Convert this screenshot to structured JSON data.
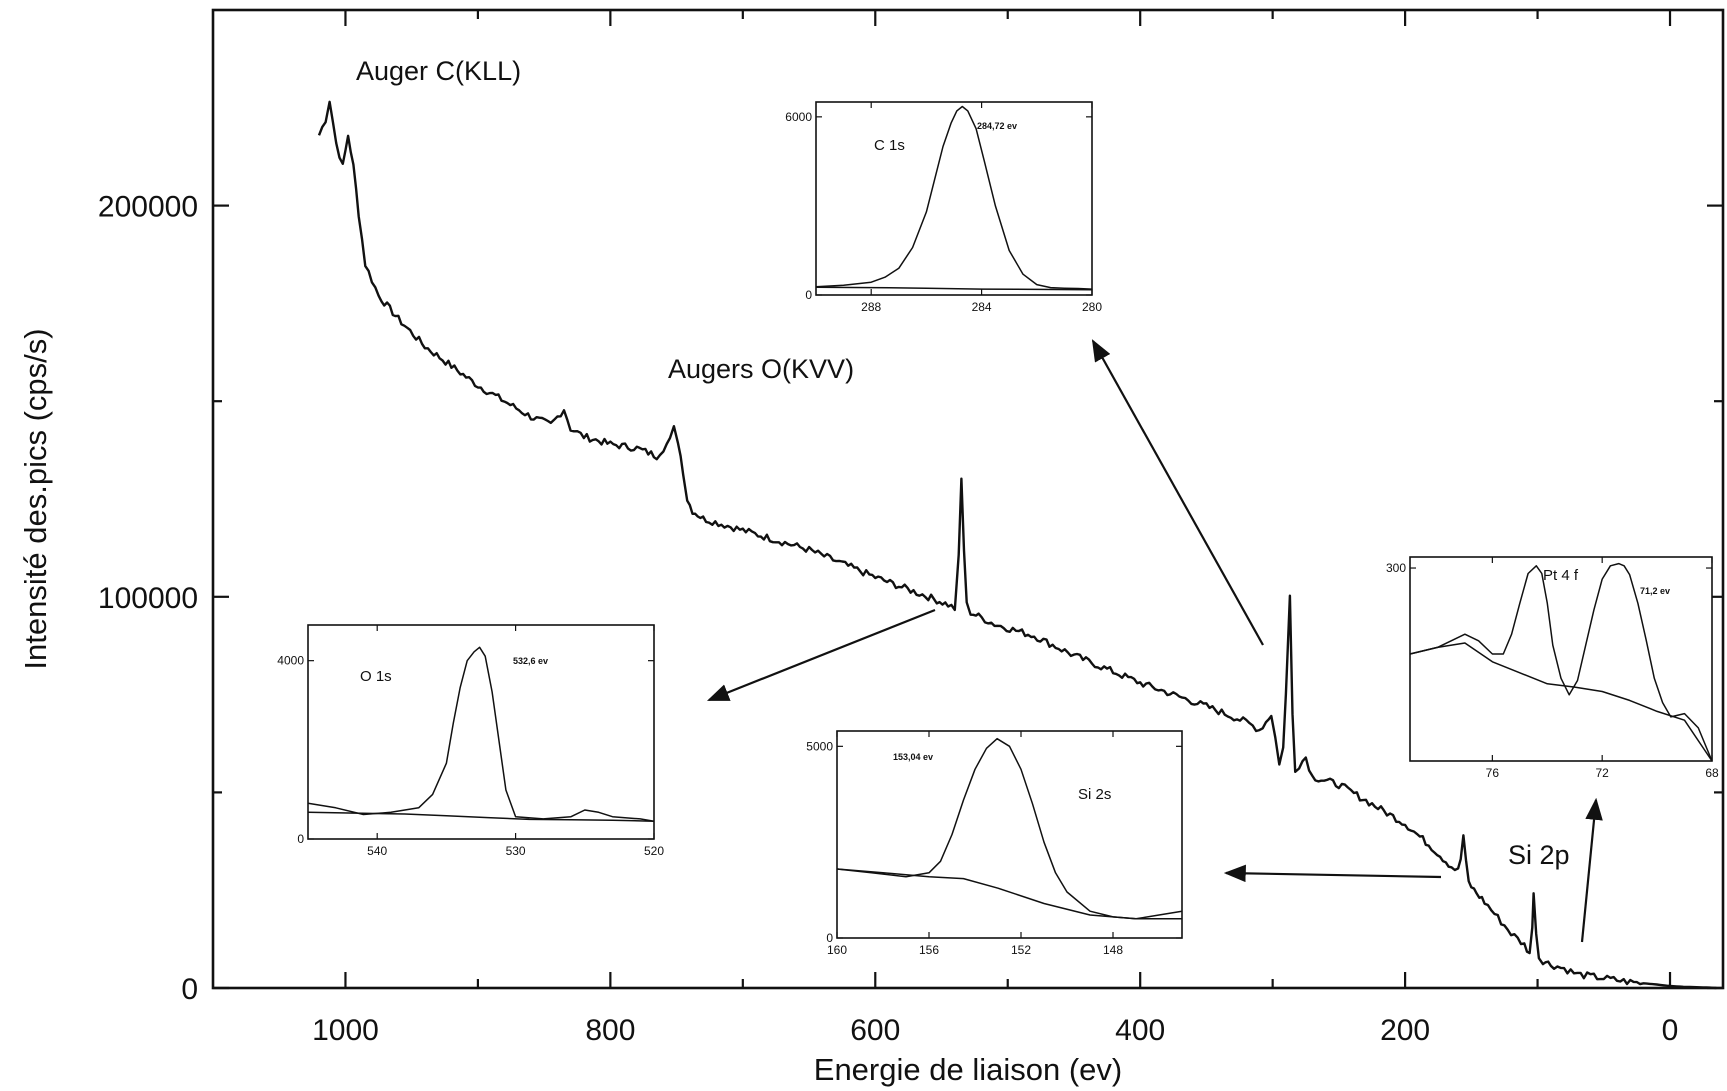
{
  "chart_data": {
    "type": "line",
    "xlabel": "Energie de liaison (ev)",
    "ylabel": "Intensité des.pics (cps/s)",
    "xlim": [
      1100,
      -40
    ],
    "ylim": [
      0,
      250000
    ],
    "x_ticks": [
      1000,
      800,
      600,
      400,
      200,
      0
    ],
    "y_ticks": [
      0,
      100000,
      200000
    ],
    "x_tick_labels": [
      "1000",
      "800",
      "600",
      "400",
      "200",
      "0"
    ],
    "y_tick_labels": [
      "0",
      "100000",
      "200000"
    ],
    "grid": false,
    "series": [
      {
        "x": [
          1020,
          1015,
          1012,
          1007,
          1002,
          998,
          994,
          990,
          985,
          975,
          960,
          940,
          920,
          900,
          880,
          860,
          845,
          835,
          830,
          820,
          800,
          780,
          765,
          760,
          755,
          752,
          749,
          745,
          742,
          738,
          730,
          700,
          650,
          600,
          560,
          545,
          540,
          537,
          535,
          533,
          531,
          528,
          522,
          510,
          480,
          450,
          400,
          350,
          320,
          310,
          305,
          301,
          298,
          295,
          292,
          290,
          287,
          285,
          283,
          280,
          275,
          270,
          250,
          200,
          180,
          165,
          160,
          158,
          156,
          154,
          152,
          148,
          140,
          130,
          120,
          110,
          106,
          104,
          103,
          101,
          99,
          96,
          90,
          80,
          70,
          60,
          50,
          40,
          30,
          20,
          10,
          0,
          -10,
          -20,
          -30,
          -35
        ],
        "y": [
          218000,
          222000,
          227000,
          216000,
          210000,
          218000,
          210000,
          198000,
          185000,
          177000,
          171000,
          164000,
          159000,
          154000,
          150000,
          146000,
          144000,
          148000,
          143000,
          141000,
          139000,
          138000,
          136000,
          138000,
          140000,
          143000,
          140000,
          132000,
          125000,
          122000,
          120000,
          117000,
          112000,
          105000,
          100000,
          98000,
          97000,
          110000,
          130000,
          112000,
          98000,
          96000,
          95000,
          93000,
          90000,
          85000,
          78000,
          72000,
          68000,
          66000,
          68000,
          70000,
          64000,
          57000,
          62000,
          75000,
          100000,
          70000,
          56000,
          57000,
          59000,
          54000,
          52000,
          42000,
          36000,
          31000,
          30000,
          33000,
          39000,
          32000,
          27000,
          25000,
          22000,
          18000,
          14000,
          11000,
          9000,
          15000,
          25000,
          14000,
          8000,
          7000,
          6000,
          5000,
          3500,
          3000,
          2500,
          2000,
          1500,
          1200,
          900,
          500,
          300,
          200,
          100,
          0
        ]
      }
    ],
    "annotations": [
      {
        "text": "Auger C(KLL)",
        "x": 1020,
        "y": 235000
      },
      {
        "text": "Augers O(KVV)",
        "x": 765,
        "y": 156000
      },
      {
        "text": "Si 2p",
        "x": 100,
        "y": 33000
      }
    ],
    "insets": [
      {
        "id": "c1s",
        "label": "C 1s",
        "peak_label": "284,72 ev",
        "xlim": [
          290,
          280
        ],
        "x_ticks": [
          288,
          284,
          280
        ],
        "x_tick_labels": [
          "288",
          "284",
          "280"
        ],
        "ylim": [
          0,
          6500
        ],
        "y_ticks": [
          0,
          6000
        ],
        "y_tick_labels": [
          "0",
          "6000"
        ],
        "envelope": {
          "x": [
            290,
            289,
            288,
            287.5,
            287,
            286.5,
            286,
            285.7,
            285.4,
            285.1,
            284.9,
            284.7,
            284.5,
            284.2,
            283.9,
            283.5,
            283,
            282.5,
            282,
            281.5,
            281,
            280.5,
            280
          ],
          "y": [
            280,
            330,
            430,
            600,
            900,
            1600,
            2800,
            3900,
            5000,
            5800,
            6200,
            6350,
            6200,
            5600,
            4500,
            3000,
            1500,
            700,
            350,
            250,
            230,
            220,
            200
          ]
        },
        "background": {
          "x": [
            290,
            288,
            286,
            284,
            282,
            280
          ],
          "y": [
            260,
            250,
            230,
            200,
            190,
            180
          ]
        }
      },
      {
        "id": "o1s",
        "label": "O 1s",
        "peak_label": "532,6 ev",
        "xlim": [
          545,
          520
        ],
        "x_ticks": [
          540,
          530,
          520
        ],
        "x_tick_labels": [
          "540",
          "530",
          "520"
        ],
        "ylim": [
          0,
          4800
        ],
        "y_ticks": [
          0,
          4000
        ],
        "y_tick_labels": [
          "0",
          "4000"
        ],
        "envelope": {
          "x": [
            545,
            543,
            541,
            539,
            537,
            536,
            535,
            534.5,
            534,
            533.5,
            533,
            532.6,
            532.2,
            531.7,
            531.2,
            530.7,
            530,
            528,
            526,
            525,
            524,
            523,
            521,
            520
          ],
          "y": [
            800,
            700,
            550,
            600,
            700,
            1000,
            1700,
            2600,
            3400,
            4000,
            4200,
            4300,
            4100,
            3300,
            2200,
            1100,
            500,
            450,
            500,
            650,
            600,
            500,
            450,
            400
          ]
        },
        "background": {
          "x": [
            545,
            538,
            535,
            532,
            529,
            526,
            523,
            520
          ],
          "y": [
            600,
            560,
            520,
            480,
            440,
            430,
            420,
            400
          ]
        }
      },
      {
        "id": "si2s",
        "label": "Si 2s",
        "peak_label": "153,04 ev",
        "xlim": [
          160,
          145
        ],
        "x_ticks": [
          160,
          156,
          152,
          148
        ],
        "x_tick_labels": [
          "160",
          "156",
          "152",
          "148"
        ],
        "ylim": [
          0,
          5400
        ],
        "y_ticks": [
          0,
          5000
        ],
        "y_tick_labels": [
          "0",
          "5000"
        ],
        "envelope": {
          "x": [
            160,
            158.5,
            157,
            156,
            155.5,
            155,
            154.5,
            154,
            153.5,
            153.04,
            152.5,
            152,
            151.5,
            151,
            150.5,
            150,
            149,
            148,
            147,
            146,
            145
          ],
          "y": [
            1800,
            1700,
            1600,
            1700,
            2000,
            2700,
            3600,
            4400,
            4950,
            5200,
            5000,
            4400,
            3500,
            2500,
            1700,
            1200,
            700,
            550,
            500,
            600,
            700
          ]
        },
        "background": {
          "x": [
            160,
            158,
            156,
            154.5,
            153,
            151,
            149,
            147,
            145
          ],
          "y": [
            1800,
            1700,
            1600,
            1550,
            1300,
            900,
            600,
            500,
            500
          ]
        }
      },
      {
        "id": "pt4f",
        "label": "Pt 4 f",
        "peak_label": "71,2 ev",
        "xlim": [
          79,
          68
        ],
        "x_ticks": [
          76,
          72,
          68
        ],
        "x_tick_labels": [
          "76",
          "72",
          "68"
        ],
        "ylim": [
          125,
          310
        ],
        "y_ticks": [
          300
        ],
        "y_tick_labels": [
          "300"
        ],
        "envelope": {
          "x": [
            79,
            78,
            77.5,
            77,
            76.5,
            76,
            75.6,
            75.3,
            75,
            74.7,
            74.4,
            74.2,
            74,
            73.8,
            73.5,
            73.2,
            72.9,
            72.6,
            72.3,
            72,
            71.7,
            71.4,
            71.2,
            71,
            70.7,
            70.4,
            70.1,
            69.8,
            69.5,
            69,
            68.5,
            68
          ],
          "y": [
            222,
            228,
            234,
            240,
            234,
            222,
            222,
            240,
            268,
            295,
            302,
            295,
            268,
            230,
            200,
            185,
            198,
            230,
            262,
            290,
            302,
            304,
            302,
            294,
            268,
            235,
            200,
            178,
            165,
            168,
            155,
            125
          ]
        },
        "background": {
          "x": [
            79,
            78,
            77,
            76,
            75,
            74,
            73,
            72,
            71,
            70,
            69,
            68
          ],
          "y": [
            222,
            228,
            232,
            215,
            205,
            195,
            192,
            188,
            180,
            170,
            162,
            125
          ]
        }
      }
    ]
  }
}
